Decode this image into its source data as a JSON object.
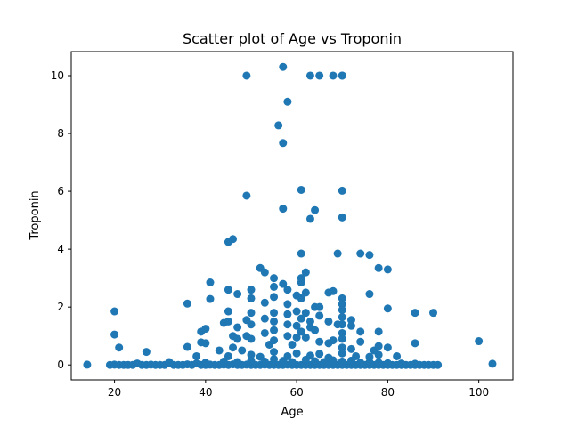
{
  "chart_data": {
    "type": "scatter",
    "title": "Scatter plot of Age vs Troponin",
    "xlabel": "Age",
    "ylabel": "Troponin",
    "xlim": [
      10.5,
      107.5
    ],
    "ylim": [
      -0.516,
      10.83
    ],
    "xticks": [
      20,
      40,
      60,
      80,
      100
    ],
    "yticks": [
      0,
      2,
      4,
      6,
      8,
      10
    ],
    "grid": false,
    "color": "#1f77b4",
    "series": [
      {
        "points": [
          [
            14,
            0.01
          ],
          [
            19,
            0.0
          ],
          [
            20,
            0.01
          ],
          [
            21,
            0.0
          ],
          [
            22,
            0.0
          ],
          [
            23,
            0.0
          ],
          [
            24,
            0.0
          ],
          [
            25,
            0.05
          ],
          [
            26,
            0.0
          ],
          [
            27,
            0.0
          ],
          [
            28,
            0.01
          ],
          [
            29,
            0.0
          ],
          [
            30,
            0.0
          ],
          [
            31,
            0.0
          ],
          [
            32,
            0.1
          ],
          [
            33,
            0.0
          ],
          [
            34,
            0.0
          ],
          [
            35,
            0.0
          ],
          [
            36,
            0.02
          ],
          [
            37,
            0.0
          ],
          [
            38,
            0.05
          ],
          [
            39,
            0.0
          ],
          [
            40,
            0.0
          ],
          [
            41,
            0.01
          ],
          [
            42,
            0.0
          ],
          [
            43,
            0.0
          ],
          [
            44,
            0.01
          ],
          [
            45,
            0.0
          ],
          [
            46,
            0.02
          ],
          [
            47,
            0.0
          ],
          [
            48,
            0.0
          ],
          [
            49,
            0.01
          ],
          [
            50,
            0.0
          ],
          [
            51,
            0.0
          ],
          [
            52,
            0.0
          ],
          [
            53,
            0.01
          ],
          [
            54,
            0.0
          ],
          [
            55,
            0.0
          ],
          [
            56,
            0.0
          ],
          [
            57,
            0.0
          ],
          [
            58,
            0.01
          ],
          [
            59,
            0.0
          ],
          [
            60,
            0.0
          ],
          [
            61,
            0.0
          ],
          [
            62,
            0.0
          ],
          [
            63,
            0.0
          ],
          [
            64,
            0.0
          ],
          [
            65,
            0.0
          ],
          [
            66,
            0.0
          ],
          [
            67,
            0.0
          ],
          [
            68,
            0.0
          ],
          [
            69,
            0.0
          ],
          [
            70,
            0.0
          ],
          [
            71,
            0.0
          ],
          [
            72,
            0.0
          ],
          [
            73,
            0.0
          ],
          [
            74,
            0.0
          ],
          [
            75,
            0.0
          ],
          [
            76,
            0.0
          ],
          [
            77,
            0.0
          ],
          [
            78,
            0.0
          ],
          [
            79,
            0.0
          ],
          [
            80,
            0.0
          ],
          [
            81,
            0.0
          ],
          [
            82,
            0.0
          ],
          [
            83,
            0.0
          ],
          [
            84,
            0.0
          ],
          [
            85,
            0.0
          ],
          [
            86,
            0.0
          ],
          [
            87,
            0.0
          ],
          [
            88,
            0.0
          ],
          [
            89,
            0.0
          ],
          [
            90,
            0.0
          ],
          [
            91,
            0.0
          ],
          [
            32,
            0.06
          ],
          [
            40,
            0.08
          ],
          [
            44,
            0.12
          ],
          [
            47,
            0.1
          ],
          [
            50,
            0.15
          ],
          [
            53,
            0.12
          ],
          [
            55,
            0.2
          ],
          [
            57,
            0.14
          ],
          [
            59,
            0.1
          ],
          [
            62,
            0.18
          ],
          [
            64,
            0.13
          ],
          [
            66,
            0.1
          ],
          [
            68,
            0.16
          ],
          [
            70,
            0.12
          ],
          [
            72,
            0.15
          ],
          [
            74,
            0.08
          ],
          [
            76,
            0.1
          ],
          [
            78,
            0.08
          ],
          [
            80,
            0.06
          ],
          [
            83,
            0.05
          ],
          [
            86,
            0.04
          ],
          [
            45,
            0.3
          ],
          [
            50,
            0.35
          ],
          [
            52,
            0.28
          ],
          [
            55,
            0.45
          ],
          [
            58,
            0.3
          ],
          [
            60,
            0.4
          ],
          [
            63,
            0.32
          ],
          [
            65,
            0.38
          ],
          [
            67,
            0.25
          ],
          [
            70,
            0.4
          ],
          [
            73,
            0.3
          ],
          [
            76,
            0.28
          ],
          [
            78,
            0.35
          ],
          [
            20,
            1.85
          ],
          [
            20,
            1.05
          ],
          [
            21,
            0.6
          ],
          [
            27,
            0.45
          ],
          [
            36,
            2.12
          ],
          [
            36,
            0.62
          ],
          [
            38,
            0.3
          ],
          [
            39,
            1.15
          ],
          [
            39,
            0.78
          ],
          [
            40,
            0.75
          ],
          [
            40,
            1.25
          ],
          [
            41,
            2.85
          ],
          [
            41,
            2.28
          ],
          [
            43,
            0.5
          ],
          [
            44,
            1.45
          ],
          [
            45,
            4.25
          ],
          [
            46,
            4.35
          ],
          [
            45,
            2.6
          ],
          [
            45,
            1.85
          ],
          [
            45,
            1.5
          ],
          [
            46,
            1.0
          ],
          [
            46,
            0.6
          ],
          [
            47,
            2.45
          ],
          [
            47,
            1.3
          ],
          [
            47,
            0.9
          ],
          [
            48,
            0.5
          ],
          [
            49,
            5.85
          ],
          [
            49,
            1.55
          ],
          [
            49,
            1.0
          ],
          [
            50,
            2.6
          ],
          [
            50,
            2.3
          ],
          [
            50,
            1.8
          ],
          [
            50,
            1.4
          ],
          [
            50,
            0.9
          ],
          [
            52,
            3.35
          ],
          [
            53,
            3.2
          ],
          [
            53,
            2.15
          ],
          [
            53,
            1.6
          ],
          [
            53,
            1.1
          ],
          [
            54,
            0.7
          ],
          [
            55,
            3.0
          ],
          [
            55,
            2.7
          ],
          [
            55,
            2.35
          ],
          [
            55,
            1.8
          ],
          [
            55,
            1.5
          ],
          [
            55,
            1.2
          ],
          [
            55,
            0.85
          ],
          [
            57,
            5.4
          ],
          [
            57,
            2.8
          ],
          [
            58,
            2.6
          ],
          [
            58,
            2.1
          ],
          [
            58,
            1.75
          ],
          [
            58,
            1.4
          ],
          [
            58,
            1.0
          ],
          [
            59,
            0.7
          ],
          [
            60,
            2.4
          ],
          [
            60,
            1.85
          ],
          [
            60,
            1.35
          ],
          [
            60,
            0.95
          ],
          [
            61,
            3.0
          ],
          [
            61,
            3.85
          ],
          [
            61,
            2.85
          ],
          [
            61,
            2.3
          ],
          [
            61,
            1.6
          ],
          [
            61,
            1.15
          ],
          [
            62,
            3.2
          ],
          [
            62,
            2.5
          ],
          [
            62,
            1.8
          ],
          [
            62,
            0.95
          ],
          [
            63,
            5.05
          ],
          [
            63,
            1.5
          ],
          [
            63,
            1.3
          ],
          [
            64,
            5.35
          ],
          [
            64,
            2.0
          ],
          [
            64,
            1.2
          ],
          [
            65,
            2.0
          ],
          [
            65,
            1.7
          ],
          [
            65,
            0.8
          ],
          [
            67,
            2.5
          ],
          [
            67,
            1.5
          ],
          [
            67,
            0.75
          ],
          [
            68,
            2.55
          ],
          [
            68,
            0.85
          ],
          [
            69,
            3.85
          ],
          [
            69,
            1.4
          ],
          [
            70,
            5.1
          ],
          [
            70,
            2.3
          ],
          [
            70,
            2.1
          ],
          [
            70,
            1.9
          ],
          [
            70,
            1.65
          ],
          [
            70,
            1.4
          ],
          [
            70,
            1.1
          ],
          [
            70,
            0.9
          ],
          [
            70,
            0.6
          ],
          [
            72,
            1.55
          ],
          [
            72,
            1.35
          ],
          [
            72,
            0.55
          ],
          [
            74,
            3.85
          ],
          [
            74,
            1.15
          ],
          [
            74,
            0.8
          ],
          [
            76,
            3.8
          ],
          [
            76,
            2.45
          ],
          [
            77,
            0.5
          ],
          [
            78,
            3.35
          ],
          [
            78,
            1.15
          ],
          [
            78,
            0.65
          ],
          [
            80,
            3.3
          ],
          [
            80,
            1.95
          ],
          [
            80,
            0.6
          ],
          [
            82,
            0.3
          ],
          [
            86,
            1.8
          ],
          [
            86,
            0.75
          ],
          [
            90,
            1.8
          ],
          [
            49,
            10.0
          ],
          [
            57,
            10.3
          ],
          [
            58,
            9.1
          ],
          [
            56,
            8.28
          ],
          [
            57,
            7.67
          ],
          [
            61,
            6.05
          ],
          [
            70,
            6.02
          ],
          [
            63,
            10.0
          ],
          [
            65,
            10.0
          ],
          [
            68,
            10.0
          ],
          [
            70,
            10.0
          ],
          [
            70,
            10.0
          ],
          [
            100,
            0.82
          ],
          [
            103,
            0.04
          ]
        ]
      }
    ]
  }
}
